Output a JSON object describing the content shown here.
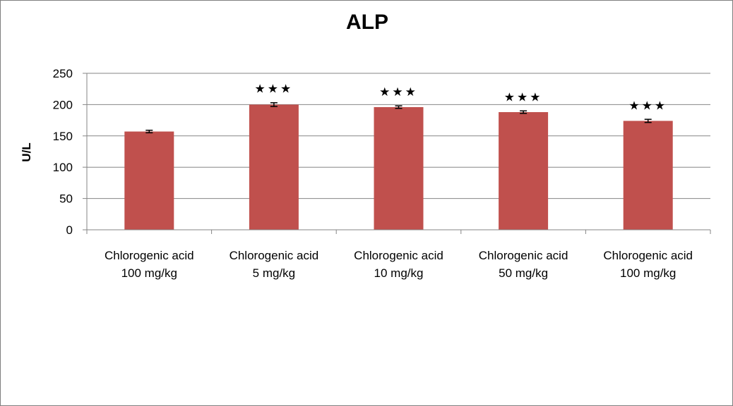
{
  "chart_data": {
    "type": "bar",
    "title": "ALP",
    "xlabel": "",
    "ylabel": "U/L",
    "ylim": [
      0,
      250
    ],
    "yticks": [
      0,
      50,
      100,
      150,
      200,
      250
    ],
    "grid": true,
    "categories": [
      [
        "Chlorogenic acid",
        "100 mg/kg"
      ],
      [
        "Chlorogenic acid",
        "5 mg/kg"
      ],
      [
        "Chlorogenic acid",
        "10 mg/kg"
      ],
      [
        "Chlorogenic acid",
        "50 mg/kg"
      ],
      [
        "Chlorogenic acid",
        "100 mg/kg"
      ]
    ],
    "values": [
      157,
      200,
      196,
      188,
      174
    ],
    "errors": [
      2,
      3,
      2,
      2,
      2.5
    ],
    "significance": [
      "",
      "★★★",
      "★★★",
      "★★★",
      "★★★"
    ],
    "bar_color": "#c0504d",
    "grid_color": "#868686"
  }
}
